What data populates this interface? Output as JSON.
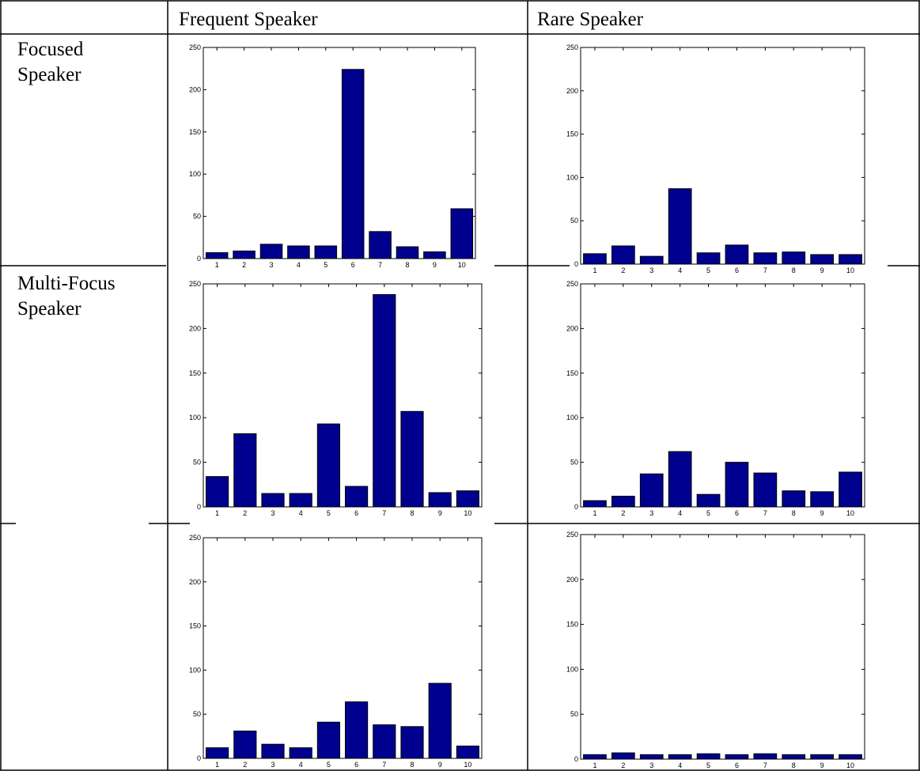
{
  "table": {
    "column_headers": [
      "Frequent Speaker",
      "Rare Speaker"
    ],
    "row_labels": [
      [
        "Focused",
        "Speaker"
      ],
      [
        "Multi-Focus",
        "Speaker"
      ],
      []
    ]
  },
  "colors": {
    "bar_fill": "#00008f",
    "bar_stroke": "#000000",
    "rule": "#000000"
  },
  "chart_data": [
    {
      "type": "bar",
      "row": "Focused Speaker",
      "column": "Frequent Speaker",
      "categories": [
        "1",
        "2",
        "3",
        "4",
        "5",
        "6",
        "7",
        "8",
        "9",
        "10"
      ],
      "values": [
        7,
        9,
        17,
        15,
        15,
        224,
        32,
        14,
        8,
        59
      ],
      "ylim": [
        0,
        250
      ],
      "yticks": [
        "0",
        "50",
        "100",
        "150",
        "200",
        "250"
      ],
      "grid": false
    },
    {
      "type": "bar",
      "row": "Focused Speaker",
      "column": "Rare Speaker",
      "categories": [
        "1",
        "2",
        "3",
        "4",
        "5",
        "6",
        "7",
        "8",
        "9",
        "10"
      ],
      "values": [
        12,
        21,
        9,
        87,
        13,
        22,
        13,
        14,
        11,
        11
      ],
      "ylim": [
        0,
        250
      ],
      "yticks": [
        "0",
        "50",
        "100",
        "150",
        "200",
        "250"
      ],
      "grid": false
    },
    {
      "type": "bar",
      "row": "Multi-Focus Speaker",
      "column": "Frequent Speaker",
      "categories": [
        "1",
        "2",
        "3",
        "4",
        "5",
        "6",
        "7",
        "8",
        "9",
        "10"
      ],
      "values": [
        34,
        82,
        15,
        15,
        93,
        23,
        238,
        107,
        16,
        18
      ],
      "ylim": [
        0,
        250
      ],
      "yticks": [
        "0",
        "50",
        "100",
        "150",
        "200",
        "250"
      ],
      "grid": false
    },
    {
      "type": "bar",
      "row": "Multi-Focus Speaker",
      "column": "Rare Speaker",
      "categories": [
        "1",
        "2",
        "3",
        "4",
        "5",
        "6",
        "7",
        "8",
        "9",
        "10"
      ],
      "values": [
        7,
        12,
        37,
        62,
        14,
        50,
        38,
        18,
        17,
        39
      ],
      "ylim": [
        0,
        250
      ],
      "yticks": [
        "0",
        "50",
        "100",
        "150",
        "200",
        "250"
      ],
      "grid": false
    },
    {
      "type": "bar",
      "row": "",
      "column": "Frequent Speaker",
      "categories": [
        "1",
        "2",
        "3",
        "4",
        "5",
        "6",
        "7",
        "8",
        "9",
        "10"
      ],
      "values": [
        12,
        31,
        16,
        12,
        41,
        64,
        38,
        36,
        85,
        14
      ],
      "ylim": [
        0,
        250
      ],
      "yticks": [
        "0",
        "50",
        "100",
        "150",
        "200",
        "250"
      ],
      "grid": false
    },
    {
      "type": "bar",
      "row": "",
      "column": "Rare Speaker",
      "categories": [
        "1",
        "2",
        "3",
        "4",
        "5",
        "6",
        "7",
        "8",
        "9",
        "10"
      ],
      "values": [
        5,
        7,
        5,
        5,
        6,
        5,
        6,
        5,
        5,
        5
      ],
      "ylim": [
        0,
        250
      ],
      "yticks": [
        "0",
        "50",
        "100",
        "150",
        "200",
        "250"
      ],
      "grid": false
    }
  ]
}
